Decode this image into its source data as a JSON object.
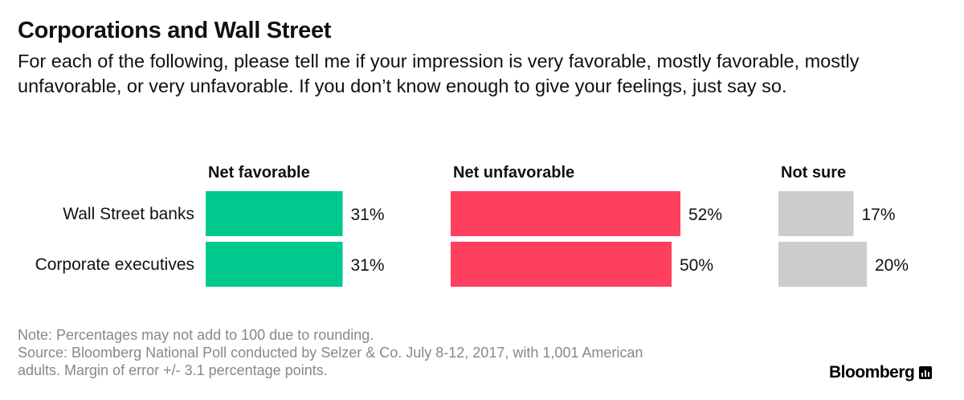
{
  "header": {
    "title": "Corporations and Wall Street",
    "subtitle": "For each of the following, please tell me if your impression is very favorable, mostly favorable, mostly unfavorable, or very unfavorable.  If you don’t know enough to give your feelings, just say so."
  },
  "footer": {
    "note": "Note: Percentages may not add to 100 due to rounding.",
    "source_line1": "Source: Bloomberg National Poll conducted by Selzer & Co. July 8-12, 2017, with 1,001 American",
    "source_line2": "adults. Margin of error +/- 3.1 percentage points.",
    "brand": "Bloomberg",
    "brand_icon": "bloomberg-chart-icon"
  },
  "chart_data": {
    "type": "bar",
    "orientation": "horizontal",
    "categories": [
      "Wall Street banks",
      "Corporate executives"
    ],
    "value_suffix": "%",
    "series": [
      {
        "name": "Net favorable",
        "values": [
          31,
          31
        ],
        "color": "#00c98d"
      },
      {
        "name": "Net unfavorable",
        "values": [
          52,
          50
        ],
        "color": "#ff3f5e"
      },
      {
        "name": "Not sure",
        "values": [
          17,
          20
        ],
        "color": "#cccccc"
      }
    ],
    "grid": false,
    "legend": "none"
  }
}
